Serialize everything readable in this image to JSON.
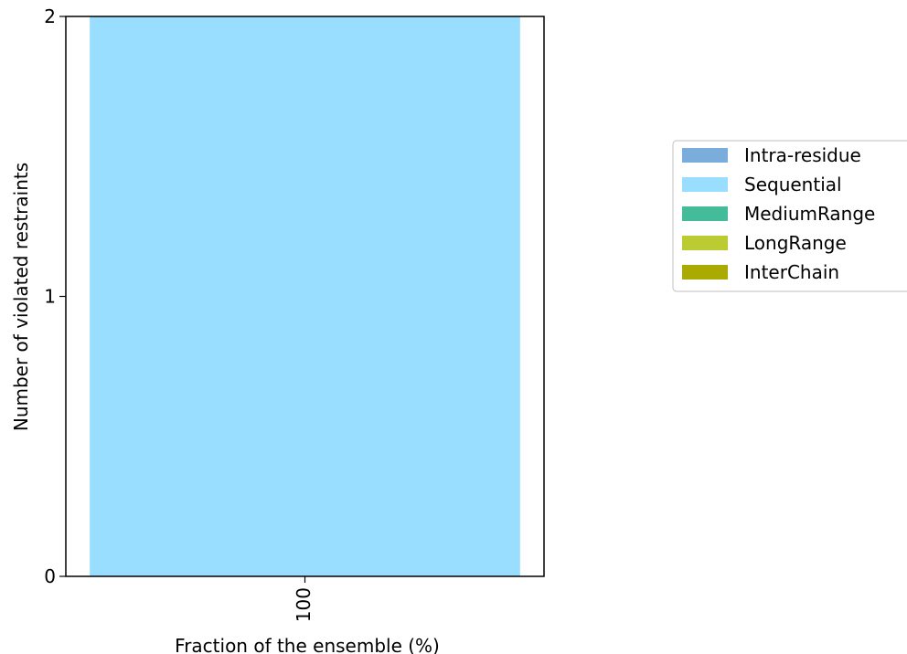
{
  "chart_data": {
    "type": "bar",
    "stacked": true,
    "categories": [
      "100"
    ],
    "series": [
      {
        "name": "Intra-residue",
        "color": "#7aacdc",
        "values": [
          0
        ]
      },
      {
        "name": "Sequential",
        "color": "#9adeff",
        "values": [
          2
        ]
      },
      {
        "name": "MediumRange",
        "color": "#44bb99",
        "values": [
          0
        ]
      },
      {
        "name": "LongRange",
        "color": "#bbcc33",
        "values": [
          0
        ]
      },
      {
        "name": "InterChain",
        "color": "#aaaa00",
        "values": [
          0
        ]
      }
    ],
    "xlabel": "Fraction of the ensemble (%)",
    "ylabel": "Number of violated restraints",
    "ylim": [
      0,
      2
    ],
    "yticks": [
      0,
      1,
      2
    ],
    "grid": false,
    "legend": "right"
  }
}
